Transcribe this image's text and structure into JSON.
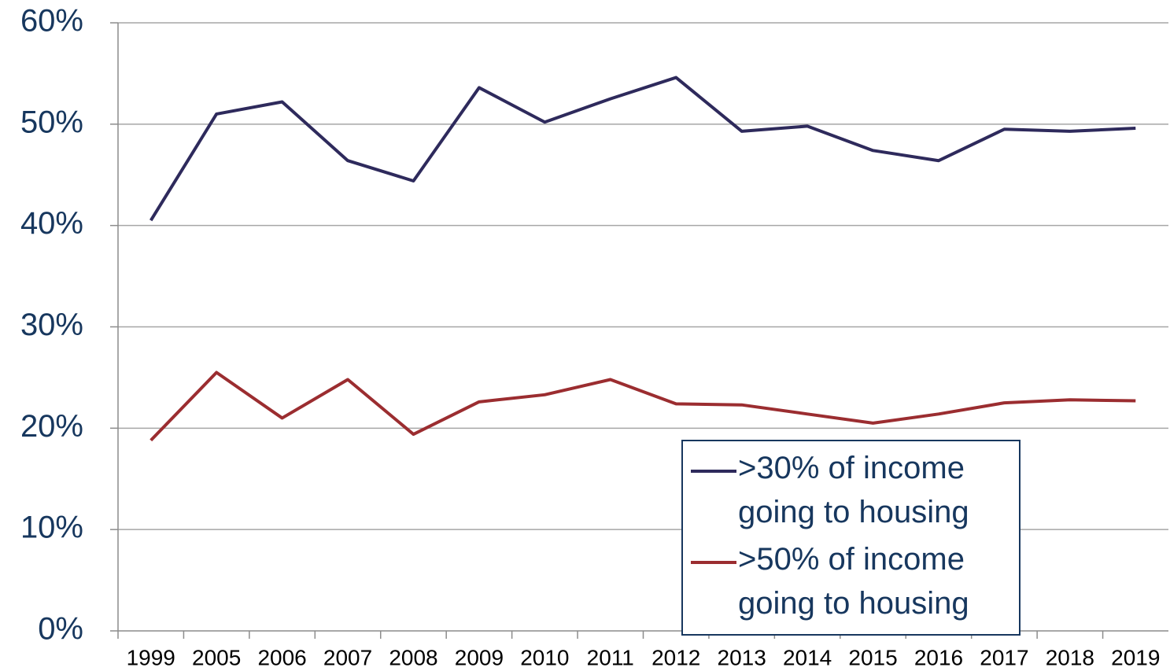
{
  "chart_data": {
    "type": "line",
    "categories": [
      "1999",
      "2005",
      "2006",
      "2007",
      "2008",
      "2009",
      "2010",
      "2011",
      "2012",
      "2013",
      "2014",
      "2015",
      "2016",
      "2017",
      "2018",
      "2019"
    ],
    "series": [
      {
        "name": ">30% of income going to housing",
        "color": "#2e2a5c",
        "values": [
          40.5,
          51.0,
          52.2,
          46.4,
          44.4,
          53.6,
          50.2,
          52.5,
          54.6,
          49.3,
          49.8,
          47.4,
          46.4,
          49.5,
          49.3,
          49.6
        ]
      },
      {
        "name": ">50% of income going to housing",
        "color": "#9b2d30",
        "values": [
          18.8,
          25.5,
          21.0,
          24.8,
          19.4,
          22.6,
          23.3,
          24.8,
          22.4,
          22.3,
          21.4,
          20.5,
          21.4,
          22.5,
          22.8,
          22.7
        ]
      }
    ],
    "ylim": [
      0,
      60
    ],
    "yticks": [
      {
        "value": 0,
        "label": "0%"
      },
      {
        "value": 10,
        "label": "10%"
      },
      {
        "value": 20,
        "label": "20%"
      },
      {
        "value": 30,
        "label": "30%"
      },
      {
        "value": 40,
        "label": "40%"
      },
      {
        "value": 50,
        "label": "50%"
      },
      {
        "value": 60,
        "label": "60%"
      }
    ],
    "grid": true,
    "legend": "lower right"
  }
}
